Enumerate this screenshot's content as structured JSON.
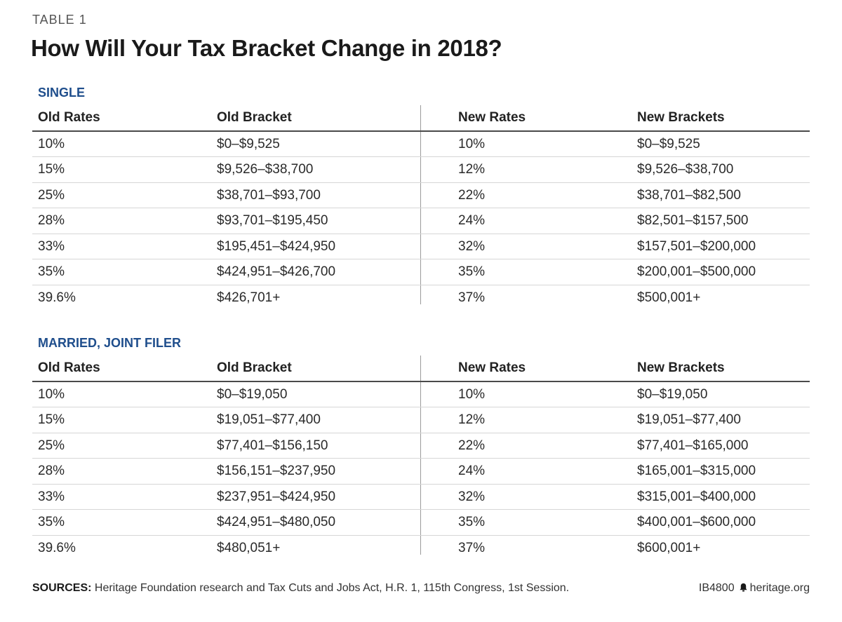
{
  "table_label": "TABLE 1",
  "title": "How Will Your Tax Bracket Change in 2018?",
  "headers": {
    "old_rates": "Old Rates",
    "old_bracket": "Old Bracket",
    "new_rates": "New Rates",
    "new_brackets": "New Brackets"
  },
  "sections": [
    {
      "name": "SINGLE",
      "rows": [
        {
          "old_rate": "10%",
          "old_bracket": "$0–$9,525",
          "new_rate": "10%",
          "new_bracket": "$0–$9,525"
        },
        {
          "old_rate": "15%",
          "old_bracket": "$9,526–$38,700",
          "new_rate": "12%",
          "new_bracket": "$9,526–$38,700"
        },
        {
          "old_rate": "25%",
          "old_bracket": "$38,701–$93,700",
          "new_rate": "22%",
          "new_bracket": "$38,701–$82,500"
        },
        {
          "old_rate": "28%",
          "old_bracket": "$93,701–$195,450",
          "new_rate": "24%",
          "new_bracket": "$82,501–$157,500"
        },
        {
          "old_rate": "33%",
          "old_bracket": "$195,451–$424,950",
          "new_rate": "32%",
          "new_bracket": "$157,501–$200,000"
        },
        {
          "old_rate": "35%",
          "old_bracket": "$424,951–$426,700",
          "new_rate": "35%",
          "new_bracket": "$200,001–$500,000"
        },
        {
          "old_rate": "39.6%",
          "old_bracket": "$426,701+",
          "new_rate": "37%",
          "new_bracket": "$500,001+"
        }
      ]
    },
    {
      "name": "MARRIED, JOINT FILER",
      "rows": [
        {
          "old_rate": "10%",
          "old_bracket": "$0–$19,050",
          "new_rate": "10%",
          "new_bracket": "$0–$19,050"
        },
        {
          "old_rate": "15%",
          "old_bracket": "$19,051–$77,400",
          "new_rate": "12%",
          "new_bracket": "$19,051–$77,400"
        },
        {
          "old_rate": "25%",
          "old_bracket": "$77,401–$156,150",
          "new_rate": "22%",
          "new_bracket": "$77,401–$165,000"
        },
        {
          "old_rate": "28%",
          "old_bracket": "$156,151–$237,950",
          "new_rate": "24%",
          "new_bracket": "$165,001–$315,000"
        },
        {
          "old_rate": "33%",
          "old_bracket": "$237,951–$424,950",
          "new_rate": "32%",
          "new_bracket": "$315,001–$400,000"
        },
        {
          "old_rate": "35%",
          "old_bracket": "$424,951–$480,050",
          "new_rate": "35%",
          "new_bracket": "$400,001–$600,000"
        },
        {
          "old_rate": "39.6%",
          "old_bracket": "$480,051+",
          "new_rate": "37%",
          "new_bracket": "$600,001+"
        }
      ]
    }
  ],
  "footer": {
    "sources_label": "SOURCES:",
    "sources_text": " Heritage Foundation research and Tax Cuts and Jobs Act, H.R. 1, 115th Congress, 1st Session.",
    "report_id": "IB4800",
    "site": "heritage.org",
    "icon": "bell-icon"
  },
  "colors": {
    "section_title": "#1f4e8c",
    "text": "#2a2a2a",
    "header_rule": "#4a4a4a",
    "row_rule": "#d6d6d6"
  }
}
